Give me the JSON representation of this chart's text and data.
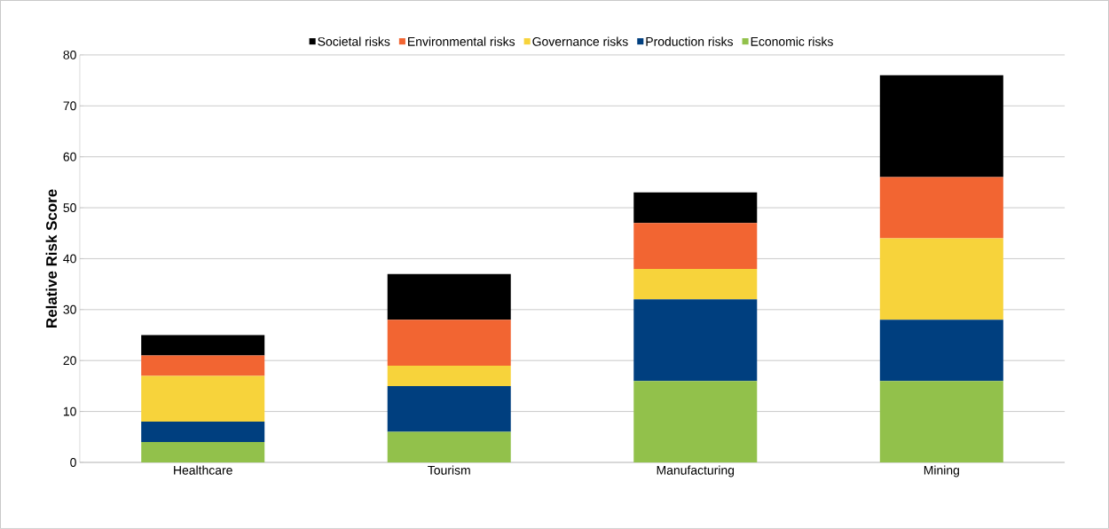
{
  "chart_data": {
    "type": "bar",
    "stacked": true,
    "ylabel": "Relative Risk Score",
    "categories": [
      "Healthcare",
      "Tourism",
      "Manufacturing",
      "Mining"
    ],
    "series": [
      {
        "name": "Economic risks",
        "color": "#92c14b",
        "values": [
          4,
          6,
          16,
          16
        ]
      },
      {
        "name": "Production risks",
        "color": "#003f7f",
        "values": [
          4,
          9,
          16,
          12
        ]
      },
      {
        "name": "Governance risks",
        "color": "#f7d33b",
        "values": [
          9,
          4,
          6,
          16
        ]
      },
      {
        "name": "Environmental risks",
        "color": "#f26532",
        "values": [
          4,
          9,
          9,
          12
        ]
      },
      {
        "name": "Societal risks",
        "color": "#000000",
        "values": [
          4,
          9,
          6,
          20
        ]
      }
    ],
    "ylim": [
      0,
      80
    ],
    "yticks": [
      0,
      10,
      20,
      30,
      40,
      50,
      60,
      70,
      80
    ],
    "grid": "y",
    "legend": "top"
  }
}
